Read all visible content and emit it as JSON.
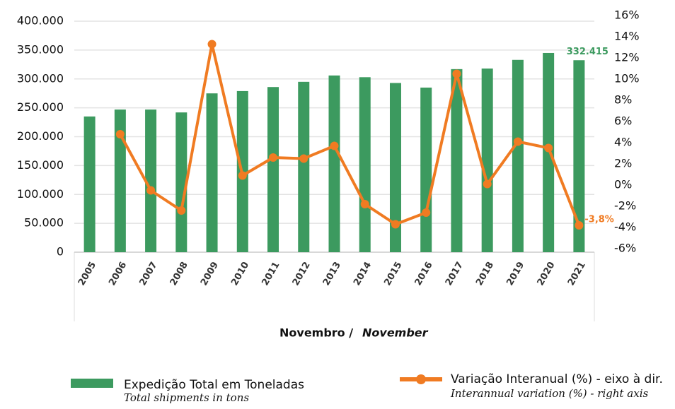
{
  "chart_data": {
    "type": "bar-line",
    "x_label_pt": "Novembro /",
    "x_label_en": "November",
    "categories": [
      "2005",
      "2006",
      "2007",
      "2008",
      "2009",
      "2010",
      "2011",
      "2012",
      "2013",
      "2014",
      "2015",
      "2016",
      "2017",
      "2018",
      "2019",
      "2020",
      "2021"
    ],
    "series": [
      {
        "name": "Expedição Total em Toneladas",
        "name_en": "Total shipments in tons",
        "color": "#3c9a5f",
        "type": "bar",
        "values": [
          235000,
          247000,
          247000,
          242000,
          275000,
          279000,
          286000,
          295000,
          306000,
          303000,
          293000,
          285000,
          317000,
          318000,
          333000,
          345000,
          332415
        ],
        "value_labels": [
          null,
          null,
          null,
          null,
          null,
          null,
          null,
          null,
          null,
          null,
          null,
          null,
          null,
          null,
          null,
          null,
          "332.415"
        ]
      },
      {
        "name": "Variação Interanual (%) - eixo à dir.",
        "name_en": "Interannual variation (%) - right axis",
        "color": "#f07b22",
        "type": "line",
        "axis": "y2",
        "values": [
          null,
          4.8,
          -0.5,
          -2.4,
          13.3,
          0.9,
          2.6,
          2.5,
          3.7,
          -1.8,
          -3.7,
          -2.6,
          10.5,
          0.1,
          4.1,
          3.5,
          -3.8
        ],
        "value_labels": [
          null,
          null,
          null,
          null,
          null,
          null,
          null,
          null,
          null,
          null,
          null,
          null,
          null,
          null,
          null,
          null,
          "-3,8%"
        ]
      }
    ],
    "ylim": [
      0,
      400000
    ],
    "yticks": [
      0,
      {
        "value": 50000,
        "label": "50.000"
      },
      {
        "value": 100000,
        "label": "100.000"
      },
      {
        "value": 150000,
        "label": "150.000"
      },
      {
        "value": 200000,
        "label": "200.000"
      },
      {
        "value": 250000,
        "label": "250.000"
      },
      {
        "value": 300000,
        "label": "300.000"
      },
      {
        "value": 350000,
        "label": "350.000"
      },
      {
        "value": 400000,
        "label": "400.000"
      }
    ],
    "y2lim": [
      -6,
      16
    ],
    "y2ticks": [
      {
        "value": -6,
        "label": "-6%"
      },
      {
        "value": -4,
        "label": "-4%"
      },
      {
        "value": -2,
        "label": "-2%"
      },
      {
        "value": 0,
        "label": "0%"
      },
      {
        "value": 2,
        "label": "2%"
      },
      {
        "value": 4,
        "label": "4%"
      },
      {
        "value": 6,
        "label": "6%"
      },
      {
        "value": 8,
        "label": "8%"
      },
      {
        "value": 10,
        "label": "10%"
      },
      {
        "value": 12,
        "label": "12%"
      },
      {
        "value": 14,
        "label": "14%"
      },
      {
        "value": 16,
        "label": "16%"
      }
    ],
    "grid": true
  }
}
